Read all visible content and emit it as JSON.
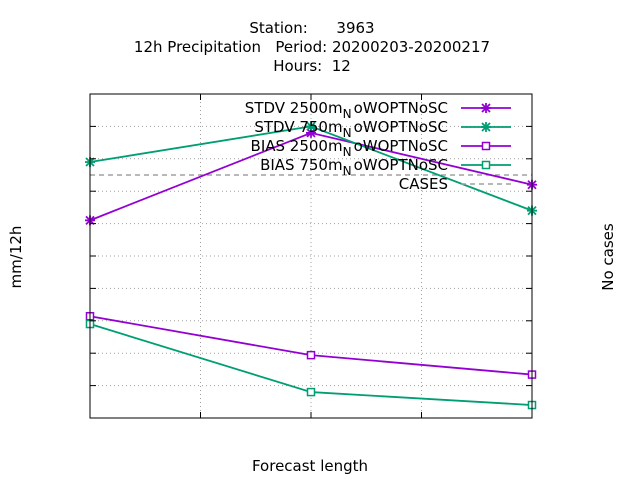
{
  "title_lines": [
    "Station:      3963",
    "12h Precipitation   Period: 20200203-20200217",
    "Hours:  12"
  ],
  "colors": {
    "purple": "#9400d3",
    "green": "#009e73",
    "cases": "#a0a0a0",
    "grid": "#a0a0a0",
    "axis": "#000000"
  },
  "chart_data": {
    "type": "line",
    "title": "Station:      3963 / 12h Precipitation   Period: 20200203-20200217 / Hours:  12",
    "xlabel": "Forecast length",
    "ylabel": "mm/12h",
    "y2label": "No cases",
    "xlim": [
      12,
      24
    ],
    "ylim": [
      -0.5,
      4.5
    ],
    "y2lim": [
      0,
      20
    ],
    "xticks": [
      "12",
      "15",
      "18",
      "21",
      "24"
    ],
    "yticks": [
      "-0.5",
      "0",
      "0.5",
      "1",
      "1.5",
      "2",
      "2.5",
      "3",
      "3.5",
      "4",
      "4.5"
    ],
    "y2ticks": [
      "0",
      "2",
      "4",
      "6",
      "8",
      "10",
      "12",
      "14",
      "16",
      "18",
      "20"
    ],
    "grid": true,
    "legend_position": "top-right",
    "series": [
      {
        "name": "STDV 2500m_N oWOPTNoSC",
        "label": {
          "base": "STDV 2500m",
          "sub": "N",
          "tail": "oWOPTNoSC"
        },
        "color": "purple",
        "marker": "x",
        "axis": "y",
        "x": [
          12,
          18,
          24
        ],
        "y": [
          2.55,
          3.9,
          3.1
        ]
      },
      {
        "name": "STDV 750m_N oWOPTNoSC",
        "label": {
          "base": "STDV 750m",
          "sub": "N",
          "tail": "oWOPTNoSC"
        },
        "color": "green",
        "marker": "x",
        "axis": "y",
        "x": [
          12,
          18,
          24
        ],
        "y": [
          3.45,
          4.0,
          2.7
        ]
      },
      {
        "name": "BIAS 2500m_N oWOPTNoSC",
        "label": {
          "base": "BIAS 2500m",
          "sub": "N",
          "tail": "oWOPTNoSC"
        },
        "color": "purple",
        "marker": "square",
        "axis": "y",
        "x": [
          12,
          18,
          24
        ],
        "y": [
          1.07,
          0.47,
          0.17
        ]
      },
      {
        "name": "BIAS 750m_N oWOPTNoSC",
        "label": {
          "base": "BIAS 750m",
          "sub": "N",
          "tail": "oWOPTNoSC"
        },
        "color": "green",
        "marker": "square",
        "axis": "y",
        "x": [
          12,
          18,
          24
        ],
        "y": [
          0.95,
          -0.1,
          -0.3
        ]
      },
      {
        "name": "CASES",
        "label": {
          "base": "CASES",
          "sub": "",
          "tail": ""
        },
        "color": "cases",
        "marker": "none",
        "dashed": true,
        "axis": "y2",
        "x": [
          12,
          18,
          24
        ],
        "y": [
          15,
          15,
          15
        ]
      }
    ]
  }
}
